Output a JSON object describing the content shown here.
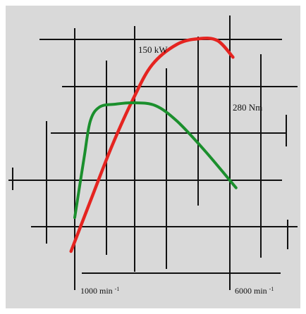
{
  "colors": {
    "background": "#ffffff",
    "panel": "#d9d9d9",
    "grid": "#111111",
    "power_curve": "#e52420",
    "torque_curve": "#1b8f2d"
  },
  "chart_data": {
    "type": "line",
    "title": "",
    "xlabel": "",
    "ylabel": "",
    "grid": true,
    "legend": "none",
    "annotations": {
      "power_label": "150 kW",
      "torque_label": "280 Nm",
      "x_tick_low": "1000 min",
      "x_tick_low_sup": "-1",
      "x_tick_high": "6000 min",
      "x_tick_high_sup": "-1"
    },
    "x_axis": {
      "min_label_value": 1000,
      "max_label_value": 6000,
      "unit": "min-1"
    },
    "series": [
      {
        "name": "",
        "color": "#e52420",
        "points": [
          [
            880,
            35
          ],
          [
            1500,
            62
          ],
          [
            2200,
            92
          ],
          [
            2900,
            118
          ],
          [
            3500,
            136
          ],
          [
            4300,
            147
          ],
          [
            5000,
            150
          ],
          [
            5600,
            149
          ],
          [
            6100,
            140
          ]
        ]
      },
      {
        "name": "",
        "color": "#1b8f2d",
        "points": [
          [
            1000,
            200
          ],
          [
            1300,
            242
          ],
          [
            1500,
            268
          ],
          [
            1800,
            278
          ],
          [
            2300,
            280
          ],
          [
            2900,
            281
          ],
          [
            3600,
            279
          ],
          [
            4300,
            268
          ],
          [
            5200,
            247
          ],
          [
            6200,
            221
          ]
        ]
      }
    ]
  }
}
